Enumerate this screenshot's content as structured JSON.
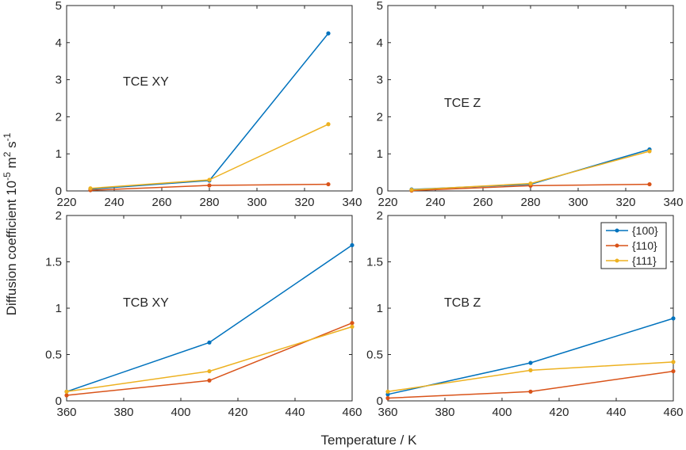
{
  "figure": {
    "ylabel": "Diffusion coefficient 10",
    "ylabel_exp1": "-5",
    "ylabel_mid": " m",
    "ylabel_exp2": "2",
    "ylabel_mid2": " s",
    "ylabel_exp3": "-1",
    "xlabel": "Temperature / K"
  },
  "colors": {
    "s100": "#0072BD",
    "s110": "#D95319",
    "s111": "#EDB120"
  },
  "legend": [
    {
      "label": "{100}",
      "color": "#0072BD"
    },
    {
      "label": "{110}",
      "color": "#D95319"
    },
    {
      "label": "{111}",
      "color": "#EDB120"
    }
  ],
  "chart_data": [
    {
      "type": "line",
      "annotation": "TCE  XY",
      "x": [
        230,
        280,
        330
      ],
      "xlim": [
        220,
        340
      ],
      "ylim": [
        0,
        5
      ],
      "xticks": [
        220,
        240,
        260,
        280,
        300,
        320,
        340
      ],
      "yticks": [
        0,
        1,
        2,
        3,
        4,
        5
      ],
      "series": [
        {
          "name": "{100}",
          "values": [
            0.05,
            0.28,
            4.25
          ]
        },
        {
          "name": "{110}",
          "values": [
            0.02,
            0.15,
            0.18
          ]
        },
        {
          "name": "{111}",
          "values": [
            0.07,
            0.3,
            1.8
          ]
        }
      ]
    },
    {
      "type": "line",
      "annotation": "TCE  Z",
      "x": [
        230,
        280,
        330
      ],
      "xlim": [
        220,
        340
      ],
      "ylim": [
        0,
        5
      ],
      "xticks": [
        220,
        240,
        260,
        280,
        300,
        320,
        340
      ],
      "yticks": [
        0,
        1,
        2,
        3,
        4,
        5
      ],
      "series": [
        {
          "name": "{100}",
          "values": [
            0.04,
            0.18,
            1.12
          ]
        },
        {
          "name": "{110}",
          "values": [
            0.01,
            0.14,
            0.18
          ]
        },
        {
          "name": "{111}",
          "values": [
            0.03,
            0.2,
            1.07
          ]
        }
      ]
    },
    {
      "type": "line",
      "annotation": "TCB  XY",
      "x": [
        360,
        410,
        460
      ],
      "xlim": [
        360,
        460
      ],
      "ylim": [
        0,
        2
      ],
      "xticks": [
        360,
        380,
        400,
        420,
        440,
        460
      ],
      "yticks": [
        0,
        0.5,
        1,
        1.5,
        2
      ],
      "series": [
        {
          "name": "{100}",
          "values": [
            0.1,
            0.63,
            1.68
          ]
        },
        {
          "name": "{110}",
          "values": [
            0.06,
            0.22,
            0.84
          ]
        },
        {
          "name": "{111}",
          "values": [
            0.1,
            0.32,
            0.8
          ]
        }
      ]
    },
    {
      "type": "line",
      "annotation": "TCB  Z",
      "x": [
        360,
        410,
        460
      ],
      "xlim": [
        360,
        460
      ],
      "ylim": [
        0,
        2
      ],
      "xticks": [
        360,
        380,
        400,
        420,
        440,
        460
      ],
      "yticks": [
        0,
        0.5,
        1,
        1.5,
        2
      ],
      "series": [
        {
          "name": "{100}",
          "values": [
            0.07,
            0.41,
            0.89
          ]
        },
        {
          "name": "{110}",
          "values": [
            0.03,
            0.1,
            0.32
          ]
        },
        {
          "name": "{111}",
          "values": [
            0.1,
            0.33,
            0.42
          ]
        }
      ]
    }
  ]
}
